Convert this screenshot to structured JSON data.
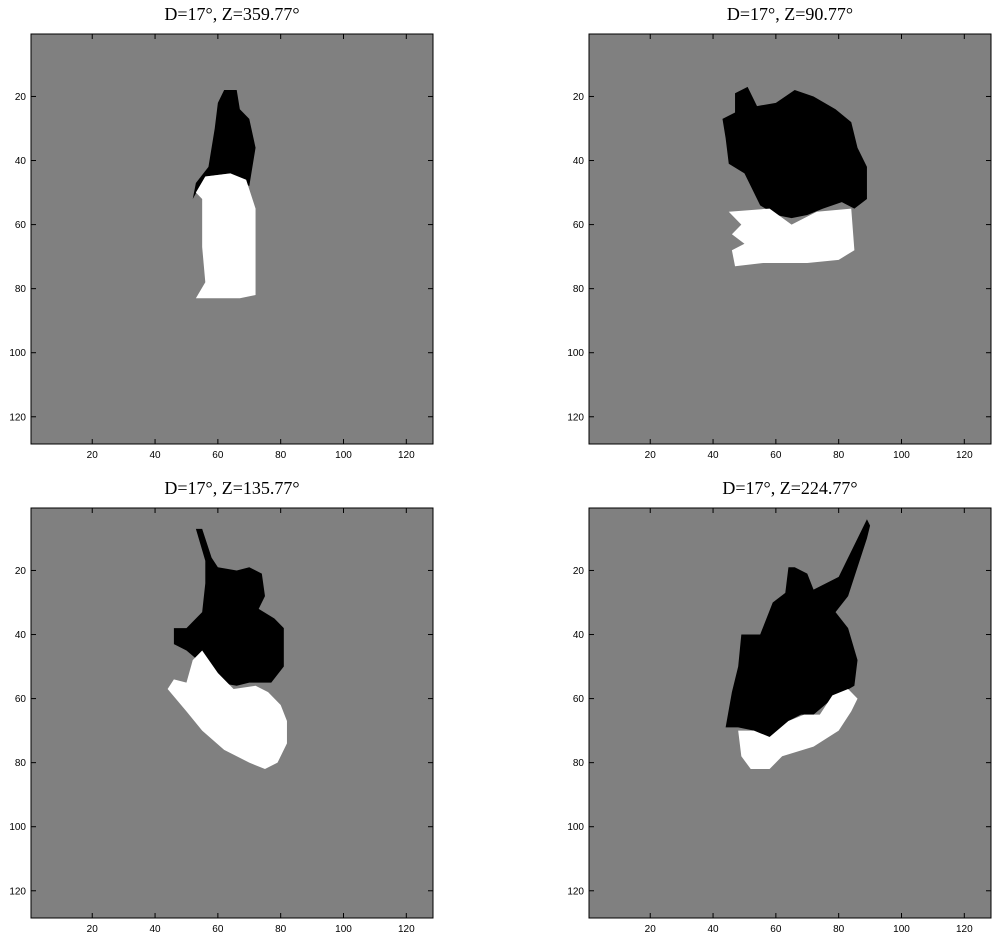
{
  "chart_data": [
    {
      "type": "image",
      "title": "D=17°, Z=359.77°",
      "xlim": [
        0.5,
        128.5
      ],
      "ylim": [
        0.5,
        128.5
      ],
      "xticks": [
        20,
        40,
        60,
        80,
        100,
        120
      ],
      "yticks": [
        20,
        40,
        60,
        80,
        100,
        120
      ]
    },
    {
      "type": "image",
      "title": "D=17°, Z=90.77°",
      "xlim": [
        0.5,
        128.5
      ],
      "ylim": [
        0.5,
        128.5
      ],
      "xticks": [
        20,
        40,
        60,
        80,
        100,
        120
      ],
      "yticks": [
        20,
        40,
        60,
        80,
        100,
        120
      ]
    },
    {
      "type": "image",
      "title": "D=17°, Z=135.77°",
      "xlim": [
        0.5,
        128.5
      ],
      "ylim": [
        0.5,
        128.5
      ],
      "xticks": [
        20,
        40,
        60,
        80,
        100,
        120
      ],
      "yticks": [
        20,
        40,
        60,
        80,
        100,
        120
      ]
    },
    {
      "type": "image",
      "title": "D=17°, Z=224.77°",
      "xlim": [
        0.5,
        128.5
      ],
      "ylim": [
        0.5,
        128.5
      ],
      "xticks": [
        20,
        40,
        60,
        80,
        100,
        120
      ],
      "yticks": [
        20,
        40,
        60,
        80,
        100,
        120
      ]
    }
  ]
}
